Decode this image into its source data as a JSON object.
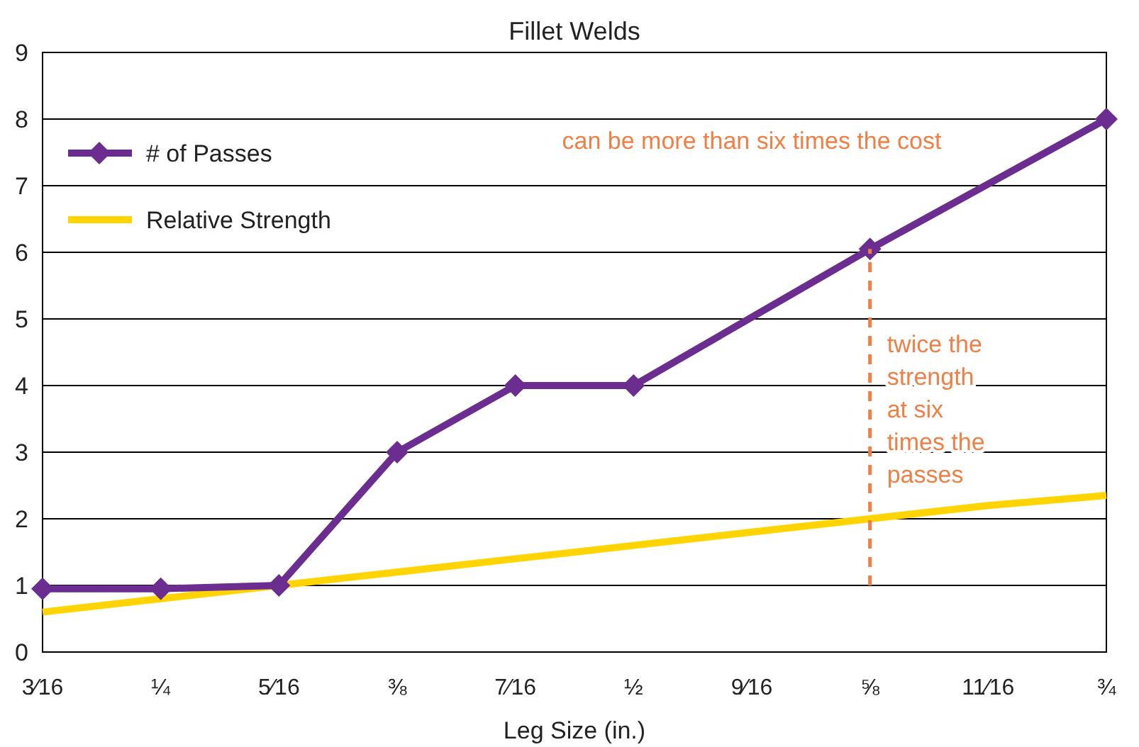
{
  "chart_data": {
    "type": "line",
    "title": "Fillet Welds",
    "xlabel": "Leg Size (in.)",
    "categories": [
      "3⁄16",
      "¼",
      "5⁄16",
      "⅜",
      "7⁄16",
      "½",
      "9⁄16",
      "⅝",
      "11⁄16",
      "¾"
    ],
    "ylim": [
      0,
      9
    ],
    "yticks": [
      0,
      1,
      2,
      3,
      4,
      5,
      6,
      7,
      8,
      9
    ],
    "grid": "y",
    "legend": "top left",
    "series": [
      {
        "name": "Relative Strength",
        "color": "#ffd400",
        "values": [
          0.6,
          0.8,
          1,
          1.2,
          1.4,
          1.6,
          1.8,
          2,
          2.2,
          2.35
        ],
        "marker": "none"
      },
      {
        "name": "# of Passes",
        "color": "#6b2d8f",
        "x": [
          "3⁄16",
          "¼",
          "5⁄16",
          "⅜",
          "7⁄16",
          "½",
          "⅝",
          "¾"
        ],
        "values": [
          0.95,
          0.95,
          1,
          3,
          4,
          4,
          6.05,
          8
        ],
        "marker": "diamond"
      },
      {
        "color": "#f07f45",
        "x": [
          "⅝",
          "⅝"
        ],
        "values": [
          1,
          6.05
        ],
        "marker": "none",
        "line_style": "dashed"
      }
    ],
    "annotations": [
      "can be more than six times the cost",
      "twice the strength at six times the passes"
    ]
  }
}
